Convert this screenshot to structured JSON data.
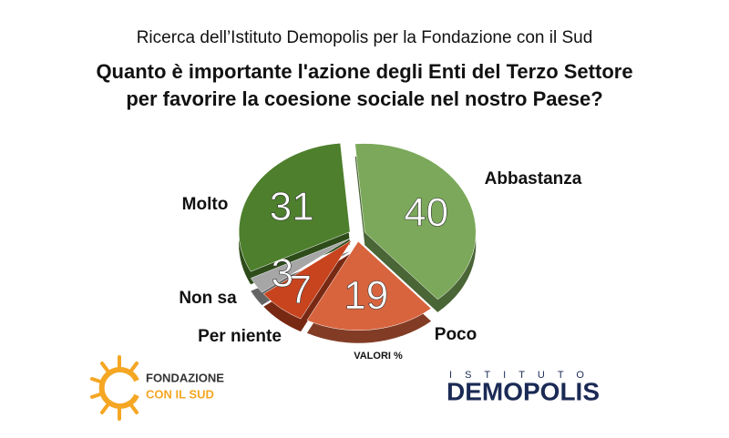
{
  "chart_data": {
    "type": "pie",
    "subtitle": "Ricerca dell’Istituto Demopolis per la Fondazione con il Sud",
    "title": [
      "Quanto è importante l'azione degli Enti del Terzo Settore",
      "per favorire la coesione sociale nel nostro Paese?"
    ],
    "categories": [
      "Abbastanza",
      "Poco",
      "Per niente",
      "Non sa",
      "Molto"
    ],
    "values": [
      40,
      19,
      7,
      3,
      31
    ],
    "colors": [
      "#7ba85a",
      "#d8643e",
      "#c8441f",
      "#a6a6a6",
      "#4d7f2c"
    ],
    "note": "VALORI %"
  },
  "logos": {
    "left": [
      "FONDAZIONE",
      "CON IL SUD"
    ],
    "right": [
      "ISTITUTO",
      "DEMOPOLIS"
    ]
  }
}
